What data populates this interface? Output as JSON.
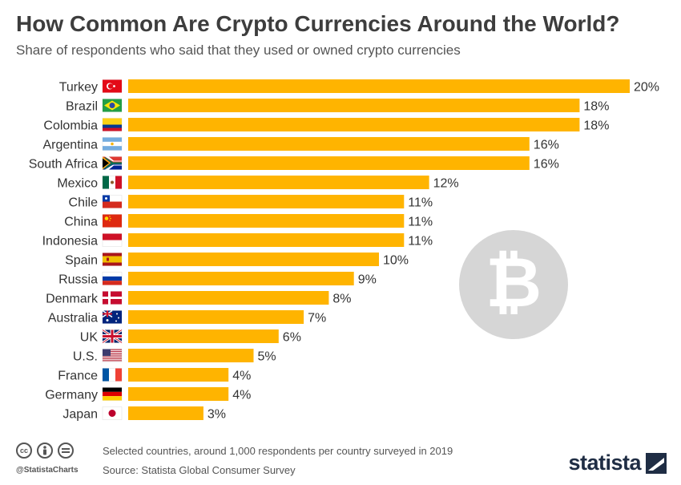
{
  "header": {
    "title": "How Common Are Crypto Currencies Around the World?",
    "subtitle": "Share of respondents who said that they used or owned crypto currencies"
  },
  "colors": {
    "bar": "#FFB400",
    "watermark": "#d6d6d6"
  },
  "watermark_icon": "bitcoin-icon",
  "chart_data": {
    "type": "bar",
    "orientation": "horizontal",
    "categories": [
      "Turkey",
      "Brazil",
      "Colombia",
      "Argentina",
      "South Africa",
      "Mexico",
      "Chile",
      "China",
      "Indonesia",
      "Spain",
      "Russia",
      "Denmark",
      "Australia",
      "UK",
      "U.S.",
      "France",
      "Germany",
      "Japan"
    ],
    "values": [
      20,
      18,
      18,
      16,
      16,
      12,
      11,
      11,
      11,
      10,
      9,
      8,
      7,
      6,
      5,
      4,
      4,
      3
    ],
    "labels": [
      "20%",
      "18%",
      "18%",
      "16%",
      "16%",
      "12%",
      "11%",
      "11%",
      "11%",
      "10%",
      "9%",
      "8%",
      "7%",
      "6%",
      "5%",
      "4%",
      "4%",
      "3%"
    ],
    "unit": "%",
    "xlim": [
      0,
      20
    ],
    "grid": false,
    "flag_icons": [
      "turkey-flag-icon",
      "brazil-flag-icon",
      "colombia-flag-icon",
      "argentina-flag-icon",
      "south-africa-flag-icon",
      "mexico-flag-icon",
      "chile-flag-icon",
      "china-flag-icon",
      "indonesia-flag-icon",
      "spain-flag-icon",
      "russia-flag-icon",
      "denmark-flag-icon",
      "australia-flag-icon",
      "uk-flag-icon",
      "us-flag-icon",
      "france-flag-icon",
      "germany-flag-icon",
      "japan-flag-icon"
    ]
  },
  "footer": {
    "note": "Selected countries, around 1,000 respondents per country surveyed in 2019",
    "source": "Source: Statista Global Consumer Survey",
    "handle": "@StatistaCharts",
    "brand": "statista",
    "license_icons": [
      "cc-icon",
      "by-icon",
      "nd-icon"
    ]
  }
}
